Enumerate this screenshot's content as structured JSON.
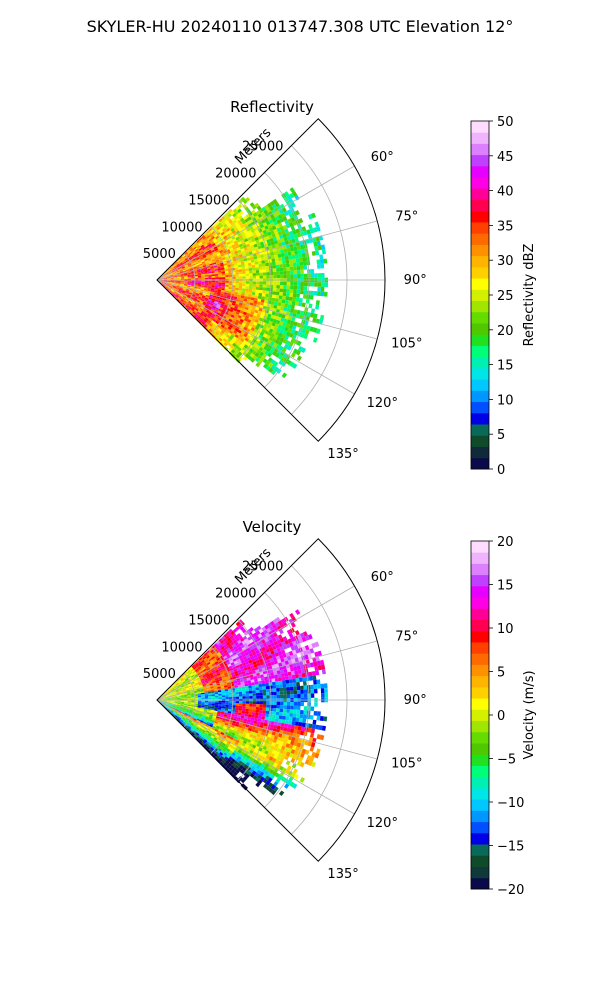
{
  "figure_title": "SKYLER-HU  20240110  013747.308 UTC Elevation 12°",
  "chart_data": [
    {
      "type": "heatmap",
      "title": "Reflectivity",
      "projection": "polar sector",
      "radial_label": "Meters",
      "radial_ticks": [
        5000,
        10000,
        15000,
        20000,
        25000
      ],
      "radial_tick_labels": [
        "5000",
        "10000",
        "15000",
        "20000",
        "25000"
      ],
      "radial_range": [
        0,
        30000
      ],
      "azimuth_range_deg": [
        45,
        135
      ],
      "azimuth_ticks": [
        60,
        75,
        90,
        105,
        120,
        135
      ],
      "azimuth_tick_labels": [
        "60°",
        "75°",
        "90°",
        "105°",
        "120°",
        "135°"
      ],
      "grid": true,
      "field": "reflectivity",
      "colorbar": {
        "label": "Reflectivity dBZ",
        "range": [
          0,
          50
        ],
        "ticks": [
          0,
          5,
          10,
          15,
          20,
          25,
          30,
          35,
          40,
          45,
          50
        ],
        "tick_labels": [
          "0",
          "5",
          "10",
          "15",
          "20",
          "25",
          "30",
          "35",
          "40",
          "45",
          "50"
        ],
        "colors": [
          "#0a0a4a",
          "#102a3a",
          "#0f4a2a",
          "#0a6a5a",
          "#0000e6",
          "#0050ff",
          "#0096ff",
          "#00c8ff",
          "#00e6e6",
          "#00f0b4",
          "#00ff78",
          "#20e020",
          "#50c800",
          "#64dc00",
          "#a0e600",
          "#d2f000",
          "#ffff00",
          "#ffd000",
          "#ffb400",
          "#ff9000",
          "#ff6a00",
          "#ff4000",
          "#ff0000",
          "#ff0050",
          "#ff0096",
          "#ff00e6",
          "#e600ff",
          "#c040ff",
          "#dc80ff",
          "#f0b4ff",
          "#ffdcff"
        ]
      }
    },
    {
      "type": "heatmap",
      "title": "Velocity",
      "projection": "polar sector",
      "radial_label": "Meters",
      "radial_ticks": [
        5000,
        10000,
        15000,
        20000,
        25000
      ],
      "radial_tick_labels": [
        "5000",
        "10000",
        "15000",
        "20000",
        "25000"
      ],
      "radial_range": [
        0,
        30000
      ],
      "azimuth_range_deg": [
        45,
        135
      ],
      "azimuth_ticks": [
        60,
        75,
        90,
        105,
        120,
        135
      ],
      "azimuth_tick_labels": [
        "60°",
        "75°",
        "90°",
        "105°",
        "120°",
        "135°"
      ],
      "grid": true,
      "field": "velocity",
      "colorbar": {
        "label": "Velocity (m/s)",
        "range": [
          -20,
          20
        ],
        "ticks": [
          -20,
          -15,
          -10,
          -5,
          0,
          5,
          10,
          15,
          20
        ],
        "tick_labels": [
          "−20",
          "−15",
          "−10",
          "−5",
          "0",
          "5",
          "10",
          "15",
          "20"
        ],
        "colors": [
          "#0a0a4a",
          "#103a3a",
          "#0f4a2a",
          "#0a6a5a",
          "#0000e6",
          "#0050ff",
          "#0096ff",
          "#00c8ff",
          "#00e6e6",
          "#00f0b4",
          "#00ff78",
          "#20e020",
          "#50c800",
          "#64dc00",
          "#a0e600",
          "#d2f000",
          "#ffff00",
          "#ffd000",
          "#ffb400",
          "#ff9000",
          "#ff6a00",
          "#ff4000",
          "#ff0000",
          "#ff0050",
          "#ff0096",
          "#ff00e6",
          "#e600ff",
          "#c040ff",
          "#dc80ff",
          "#f0b4ff",
          "#ffdcff"
        ]
      }
    }
  ]
}
